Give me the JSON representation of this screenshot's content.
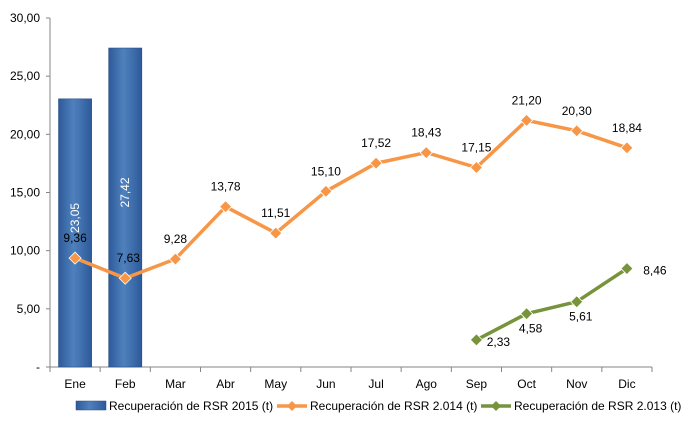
{
  "chart_data": {
    "type": "bar",
    "categories": [
      "Ene",
      "Feb",
      "Mar",
      "Abr",
      "May",
      "Jun",
      "Jul",
      "Ago",
      "Sep",
      "Oct",
      "Nov",
      "Dic"
    ],
    "y_tick_labels": [
      "-",
      "5,00",
      "10,00",
      "15,00",
      "20,00",
      "25,00",
      "30,00"
    ],
    "ylim": [
      0,
      30
    ],
    "y_step": 5,
    "grid": false,
    "legend_position": "bottom",
    "series": [
      {
        "name": "Recuperación de RSR 2015 (t)",
        "kind": "bar",
        "color": "#4f81bd",
        "values": [
          23.05,
          27.42,
          null,
          null,
          null,
          null,
          null,
          null,
          null,
          null,
          null,
          null
        ],
        "labels": [
          "23,05",
          "27,42",
          null,
          null,
          null,
          null,
          null,
          null,
          null,
          null,
          null,
          null
        ]
      },
      {
        "name": "Recuperación de RSR 2.014 (t)",
        "kind": "line",
        "color": "#f79646",
        "values": [
          9.36,
          7.63,
          9.28,
          13.78,
          11.51,
          15.1,
          17.52,
          18.43,
          17.15,
          21.2,
          20.3,
          18.84
        ],
        "labels": [
          "9,36",
          "7,63",
          "9,28",
          "13,78",
          "11,51",
          "15,10",
          "17,52",
          "18,43",
          "17,15",
          "21,20",
          "20,30",
          "18,84"
        ]
      },
      {
        "name": "Recuperación de RSR 2.013 (t)",
        "kind": "line",
        "color": "#77933c",
        "values": [
          null,
          null,
          null,
          null,
          null,
          null,
          null,
          null,
          2.33,
          4.58,
          5.61,
          8.46
        ],
        "labels": [
          null,
          null,
          null,
          null,
          null,
          null,
          null,
          null,
          "2,33",
          "4,58",
          "5,61",
          "8,46"
        ]
      }
    ]
  }
}
